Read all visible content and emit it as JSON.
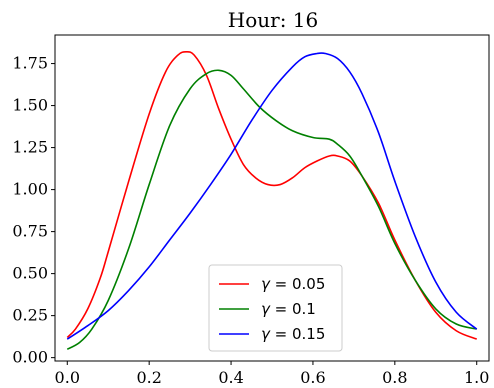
{
  "chart_data": {
    "type": "line",
    "title": "Hour: 16",
    "xlabel": "",
    "ylabel": "",
    "xlim": [
      -0.03,
      1.03
    ],
    "ylim": [
      -0.02,
      1.92
    ],
    "xticks": [
      0.0,
      0.2,
      0.4,
      0.6,
      0.8,
      1.0
    ],
    "xtick_labels": [
      "0.0",
      "0.2",
      "0.4",
      "0.6",
      "0.8",
      "1.0"
    ],
    "yticks": [
      0.0,
      0.25,
      0.5,
      0.75,
      1.0,
      1.25,
      1.5,
      1.75
    ],
    "ytick_labels": [
      "0.00",
      "0.25",
      "0.50",
      "0.75",
      "1.00",
      "1.25",
      "1.50",
      "1.75"
    ],
    "grid": false,
    "legend_position": "lower-center",
    "series": [
      {
        "name": "γ = 0.05",
        "legend_var": "γ",
        "legend_rest": " = 0.05",
        "color": "#ff0000",
        "x": [
          0.0,
          0.02,
          0.05,
          0.08,
          0.1,
          0.15,
          0.2,
          0.24,
          0.27,
          0.29,
          0.31,
          0.34,
          0.37,
          0.4,
          0.43,
          0.46,
          0.49,
          0.52,
          0.55,
          0.58,
          0.61,
          0.64,
          0.66,
          0.69,
          0.72,
          0.76,
          0.8,
          0.85,
          0.9,
          0.95,
          1.0
        ],
        "y": [
          0.12,
          0.17,
          0.29,
          0.47,
          0.63,
          1.05,
          1.45,
          1.7,
          1.8,
          1.82,
          1.8,
          1.68,
          1.48,
          1.3,
          1.15,
          1.07,
          1.03,
          1.03,
          1.07,
          1.13,
          1.17,
          1.2,
          1.2,
          1.17,
          1.08,
          0.92,
          0.7,
          0.46,
          0.27,
          0.16,
          0.11
        ]
      },
      {
        "name": "γ = 0.1",
        "legend_var": "γ",
        "legend_rest": " = 0.1",
        "color": "#008000",
        "x": [
          0.0,
          0.03,
          0.06,
          0.1,
          0.15,
          0.2,
          0.25,
          0.3,
          0.34,
          0.37,
          0.4,
          0.43,
          0.47,
          0.51,
          0.55,
          0.6,
          0.64,
          0.66,
          0.69,
          0.72,
          0.76,
          0.8,
          0.85,
          0.9,
          0.95,
          1.0
        ],
        "y": [
          0.05,
          0.09,
          0.17,
          0.34,
          0.65,
          1.03,
          1.38,
          1.6,
          1.69,
          1.71,
          1.68,
          1.6,
          1.49,
          1.41,
          1.35,
          1.31,
          1.3,
          1.27,
          1.2,
          1.08,
          0.9,
          0.68,
          0.46,
          0.29,
          0.2,
          0.17
        ]
      },
      {
        "name": "γ = 0.15",
        "legend_var": "γ",
        "legend_rest": " = 0.15",
        "color": "#0000ff",
        "x": [
          0.0,
          0.05,
          0.1,
          0.15,
          0.2,
          0.25,
          0.3,
          0.35,
          0.4,
          0.45,
          0.5,
          0.55,
          0.58,
          0.61,
          0.63,
          0.66,
          0.69,
          0.72,
          0.76,
          0.8,
          0.85,
          0.9,
          0.95,
          1.0
        ],
        "y": [
          0.11,
          0.19,
          0.28,
          0.4,
          0.54,
          0.7,
          0.86,
          1.03,
          1.21,
          1.41,
          1.59,
          1.73,
          1.79,
          1.81,
          1.81,
          1.78,
          1.7,
          1.57,
          1.34,
          1.05,
          0.72,
          0.45,
          0.27,
          0.17
        ]
      }
    ]
  }
}
